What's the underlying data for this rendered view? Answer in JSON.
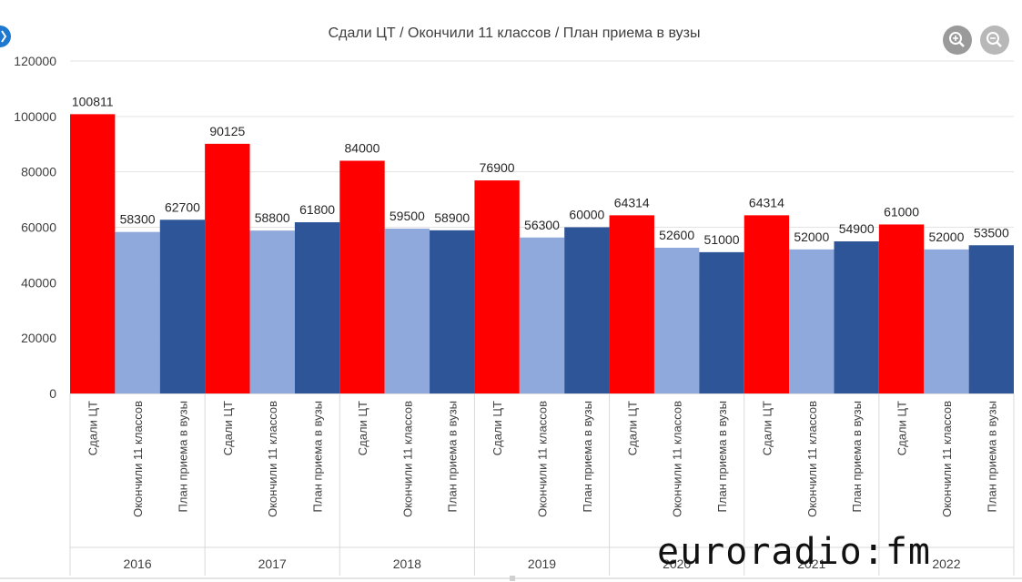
{
  "watermark": "euroradio:fm",
  "icons": {
    "zoom_in": "zoom-in-icon",
    "zoom_out": "zoom-out-icon",
    "nav": "nav-arrow-icon"
  },
  "colors": {
    "series1": "#ff0000",
    "series2": "#8fa9dc",
    "series3": "#2e5597"
  },
  "chart_data": {
    "type": "bar",
    "title": "Сдали ЦТ / Окончили 11 классов / План приема в вузы",
    "xlabel": "",
    "ylabel": "",
    "ylim": [
      0,
      120000
    ],
    "yticks": [
      0,
      20000,
      40000,
      60000,
      80000,
      100000,
      120000
    ],
    "grid": true,
    "categories": [
      "2016",
      "2017",
      "2018",
      "2019",
      "2020",
      "2021",
      "2022"
    ],
    "series": [
      {
        "name": "Сдали ЦТ",
        "values": [
          100811,
          90125,
          84000,
          76900,
          64314,
          64314,
          61000
        ]
      },
      {
        "name": "Окончили 11 классов",
        "values": [
          58300,
          58800,
          59500,
          56300,
          52600,
          52000,
          52000
        ]
      },
      {
        "name": "План приема в вузы",
        "values": [
          62700,
          61800,
          58900,
          60000,
          51000,
          54900,
          53500
        ]
      }
    ]
  }
}
